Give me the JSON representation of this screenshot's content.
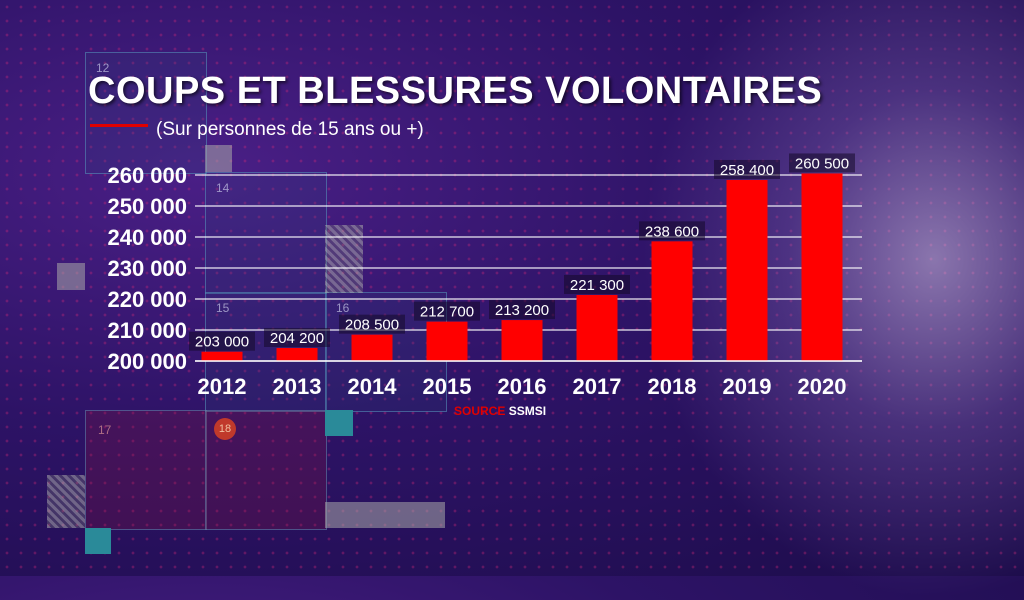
{
  "title": "COUPS ET BLESSURES VOLONTAIRES",
  "subtitle": "(Sur personnes de 15 ans ou +)",
  "source": {
    "label": "SOURCE",
    "name": "SSMSI"
  },
  "panel_numbers": [
    "12",
    "14",
    "15",
    "16",
    "17",
    "18"
  ],
  "colors": {
    "bar": "#ff0000",
    "text": "#ffffff",
    "accent": "#e00000"
  },
  "chart_data": {
    "type": "bar",
    "title": "COUPS ET BLESSURES VOLONTAIRES",
    "subtitle": "(Sur personnes de 15 ans ou +)",
    "categories": [
      "2012",
      "2013",
      "2014",
      "2015",
      "2016",
      "2017",
      "2018",
      "2019",
      "2020"
    ],
    "values": [
      203000,
      204200,
      208500,
      212700,
      213200,
      221300,
      238600,
      258400,
      260500
    ],
    "value_labels": [
      "203 000",
      "204 200",
      "208 500",
      "212 700",
      "213 200",
      "221 300",
      "238 600",
      "258 400",
      "260 500"
    ],
    "y_ticks": [
      200000,
      210000,
      220000,
      230000,
      240000,
      250000,
      260000
    ],
    "y_tick_labels": [
      "200 000",
      "210 000",
      "220 000",
      "230 000",
      "240 000",
      "250 000",
      "260 000"
    ],
    "ylim": [
      200000,
      260000
    ],
    "grid": true,
    "xlabel": "",
    "ylabel": ""
  }
}
